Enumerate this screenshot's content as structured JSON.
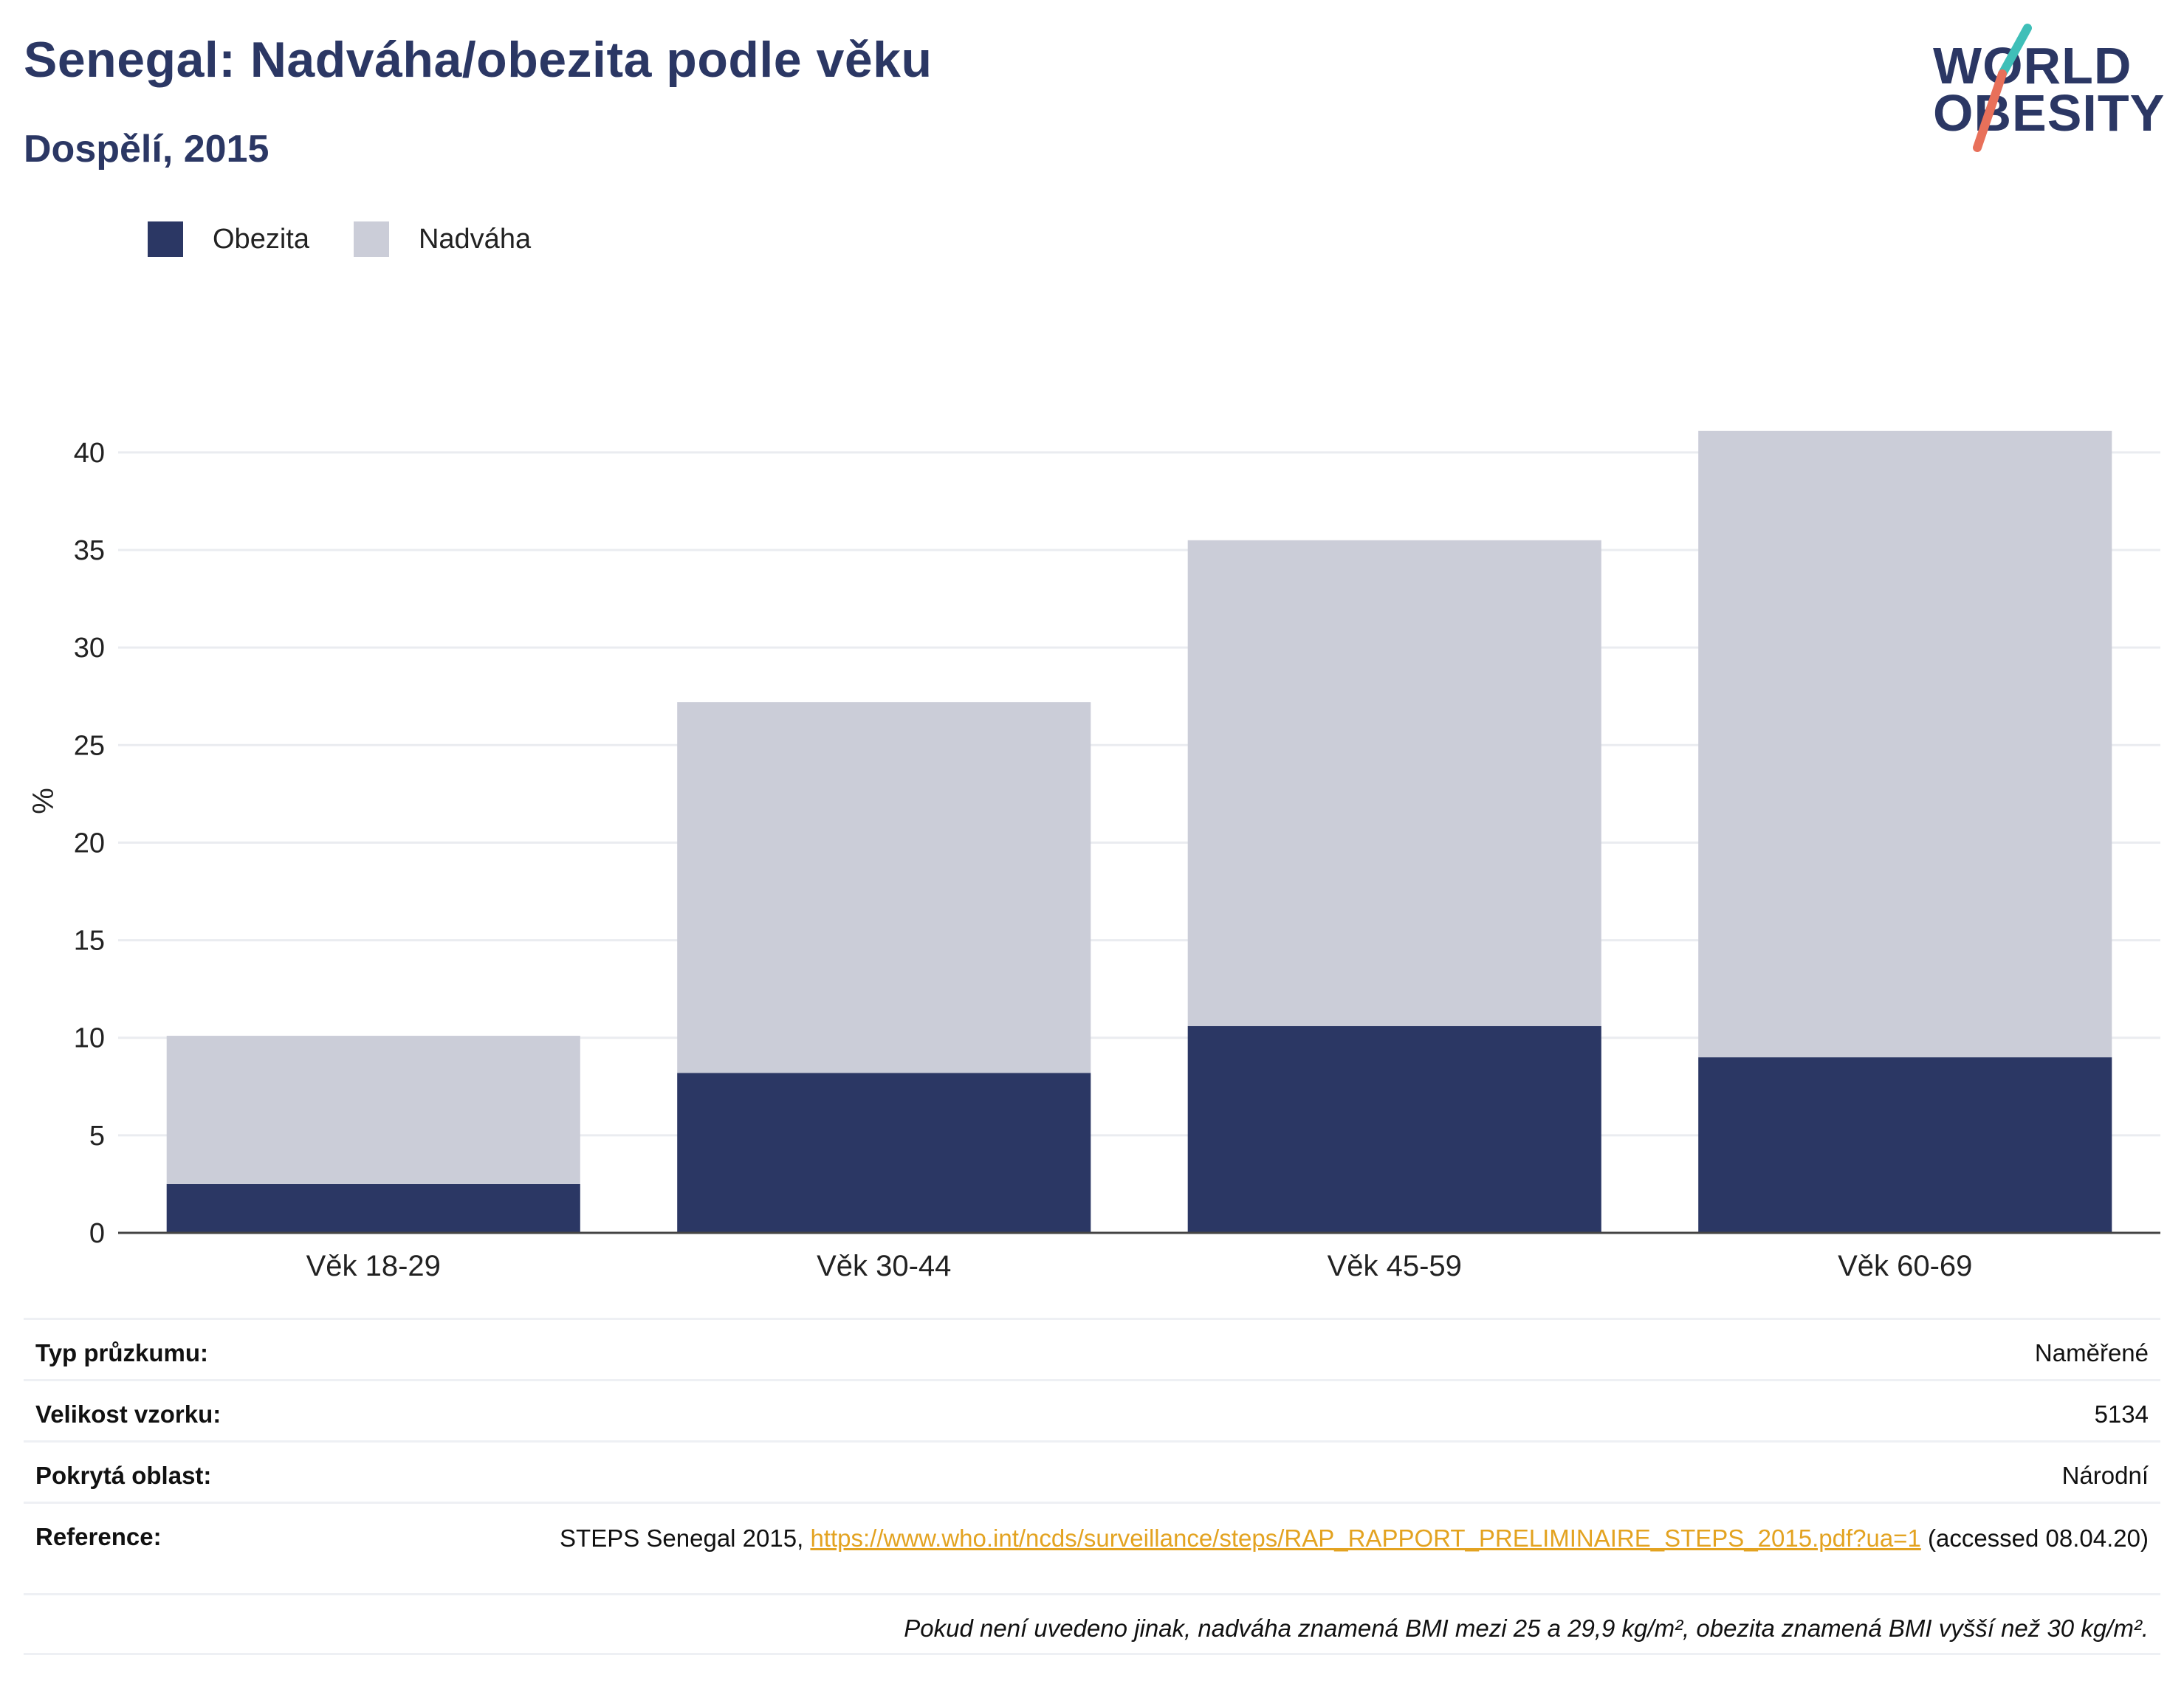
{
  "header": {
    "title": "Senegal: Nadváha/obezita podle věku",
    "subtitle": "Dospělí, 2015",
    "logo_line1": "WORLD",
    "logo_line2": "OBESITY"
  },
  "colors": {
    "obesity": "#2b3764",
    "overweight": "#cbcdd8",
    "title": "#2b3764",
    "link": "#e3a321",
    "logo_accent_teal": "#3fbfb8",
    "logo_accent_coral": "#e8705a"
  },
  "chart_data": {
    "type": "bar",
    "stacked": true,
    "categories": [
      "Věk 18-29",
      "Věk 30-44",
      "Věk 45-59",
      "Věk 60-69"
    ],
    "series": [
      {
        "name": "Obezita",
        "values": [
          2.5,
          8.2,
          10.6,
          9.0
        ]
      },
      {
        "name": "Nadváha",
        "values": [
          7.6,
          19.0,
          24.9,
          32.1
        ]
      }
    ],
    "ylabel": "%",
    "xlabel": "",
    "ylim": [
      0,
      42
    ],
    "yticks": [
      0,
      5,
      10,
      15,
      20,
      25,
      30,
      35,
      40
    ],
    "grid": true,
    "legend_position": "top-left"
  },
  "info": {
    "survey_type_label": "Typ průzkumu:",
    "survey_type_value": "Naměřené",
    "sample_size_label": "Velikost vzorku:",
    "sample_size_value": "5134",
    "area_label": "Pokrytá oblast:",
    "area_value": "Národní",
    "reference_label": "Reference:",
    "reference_prefix": "STEPS Senegal 2015, ",
    "reference_link": "https://www.who.int/ncds/surveillance/steps/RAP_RAPPORT_PRELIMINAIRE_STEPS_2015.pdf?ua=1",
    "reference_suffix": " (accessed 08.04.20)",
    "footnote": "Pokud není uvedeno jinak, nadváha znamená BMI mezi 25 a 29,9 kg/m², obezita znamená BMI vyšší než 30 kg/m²."
  }
}
